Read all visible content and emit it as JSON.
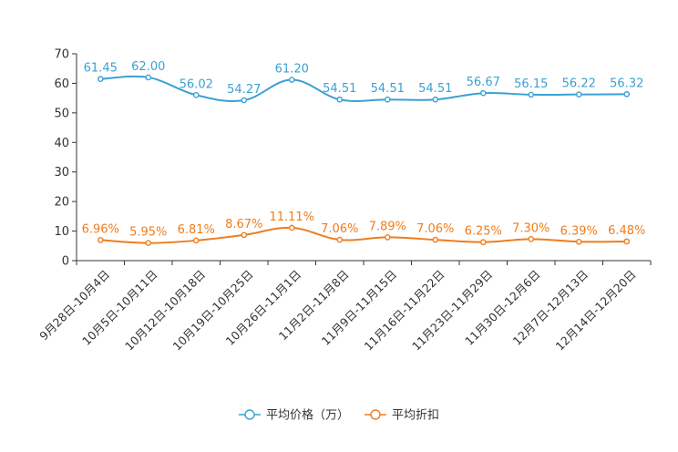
{
  "chart_data": {
    "type": "line",
    "categories": [
      "9月28日-10月4日",
      "10月5日-10月11日",
      "10月12日-10月18日",
      "10月19日-10月25日",
      "10月26日-11月1日",
      "11月2日-11月8日",
      "11月9日-11月15日",
      "11月16日-11月22日",
      "11月23日-11月29日",
      "11月30日-12月6日",
      "12月7日-12月13日",
      "12月14日-12月20日"
    ],
    "series": [
      {
        "name": "平均价格（万）",
        "color": "#3ba1d3",
        "values": [
          61.45,
          62.0,
          56.02,
          54.27,
          61.2,
          54.51,
          54.51,
          54.51,
          56.67,
          56.15,
          56.22,
          56.32
        ],
        "labels": [
          "61.45",
          "62.00",
          "56.02",
          "54.27",
          "61.20",
          "54.51",
          "54.51",
          "54.51",
          "56.67",
          "56.15",
          "56.22",
          "56.32"
        ]
      },
      {
        "name": "平均折扣",
        "color": "#f07c1c",
        "values": [
          6.96,
          5.95,
          6.81,
          8.67,
          11.11,
          7.06,
          7.89,
          7.06,
          6.25,
          7.3,
          6.39,
          6.48
        ],
        "labels": [
          "6.96%",
          "5.95%",
          "6.81%",
          "8.67%",
          "11.11%",
          "7.06%",
          "7.89%",
          "7.06%",
          "6.25%",
          "7.30%",
          "6.39%",
          "6.48%"
        ]
      }
    ],
    "yticks": [
      "0",
      "10",
      "20",
      "30",
      "40",
      "50",
      "60",
      "70"
    ],
    "ylim": [
      0,
      70
    ],
    "title": "",
    "xlabel": "",
    "ylabel": "",
    "legend": "bottom-center"
  }
}
